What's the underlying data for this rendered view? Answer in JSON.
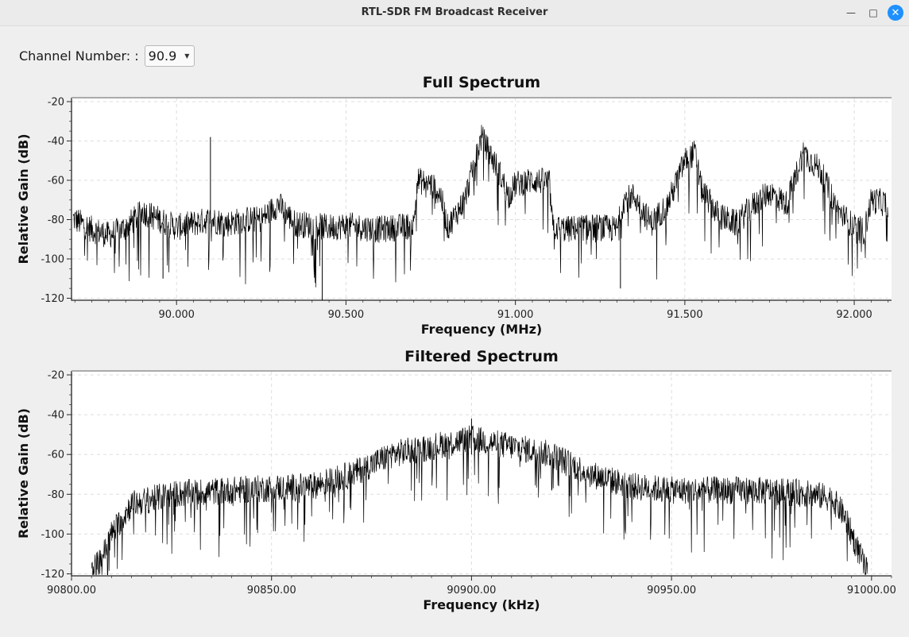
{
  "window": {
    "title": "RTL-SDR FM Broadcast Receiver",
    "minimize_icon": "minimize-icon",
    "maximize_icon": "maximize-icon",
    "close_icon": "close-icon"
  },
  "controls": {
    "channel_label": "Channel Number: :",
    "channel_value": "90.9",
    "dropdown_icon": "chevron-down-icon"
  },
  "chart_data": [
    {
      "type": "line",
      "title": "Full Spectrum",
      "xlabel": "Frequency (MHz)",
      "ylabel": "Relative Gain (dB)",
      "xlim": [
        89.69,
        92.11
      ],
      "ylim": [
        -121,
        -18
      ],
      "grid": true,
      "x_ticks": [
        "90.000",
        "90.500",
        "91.000",
        "91.500",
        "92.000"
      ],
      "y_ticks": [
        "-20",
        "-40",
        "-60",
        "-80",
        "-100",
        "-120"
      ],
      "series": [
        {
          "x": [
            89.69,
            89.75,
            89.8,
            89.85,
            89.9,
            89.95,
            90.0,
            90.05,
            90.1,
            90.15,
            90.2,
            90.25,
            90.3,
            90.35,
            90.4,
            90.45,
            90.5,
            90.55,
            90.6,
            90.65,
            90.7,
            90.71,
            90.75,
            90.78,
            90.8,
            90.85,
            90.9,
            90.95,
            90.98,
            91.0,
            91.05,
            91.1,
            91.11,
            91.15,
            91.2,
            91.25,
            91.3,
            91.32,
            91.35,
            91.4,
            91.45,
            91.5,
            91.53,
            91.55,
            91.6,
            91.65,
            91.7,
            91.75,
            91.8,
            91.85,
            91.9,
            91.95,
            92.0,
            92.03,
            92.05,
            92.1
          ],
          "y": [
            -79,
            -85,
            -88,
            -84,
            -76,
            -80,
            -84,
            -82,
            -80,
            -82,
            -80,
            -80,
            -72,
            -82,
            -83,
            -84,
            -83,
            -84,
            -85,
            -84,
            -83,
            -60,
            -62,
            -68,
            -84,
            -70,
            -38,
            -55,
            -68,
            -62,
            -60,
            -61,
            -84,
            -85,
            -84,
            -84,
            -85,
            -70,
            -68,
            -82,
            -72,
            -50,
            -46,
            -65,
            -78,
            -82,
            -73,
            -66,
            -72,
            -46,
            -55,
            -75,
            -84,
            -86,
            -70,
            -72
          ]
        }
      ]
    },
    {
      "type": "line",
      "title": "Filtered Spectrum",
      "xlabel": "Frequency (kHz)",
      "ylabel": "Relative Gain (dB)",
      "xlim": [
        90800,
        91005
      ],
      "ylim": [
        -121,
        -18
      ],
      "grid": true,
      "x_ticks": [
        "90800.00",
        "90850.00",
        "90900.00",
        "90950.00",
        "91000.00"
      ],
      "y_ticks": [
        "-20",
        "-40",
        "-60",
        "-80",
        "-100",
        "-120"
      ],
      "series": [
        {
          "x": [
            90805,
            90808,
            90810,
            90815,
            90825,
            90840,
            90860,
            90870,
            90880,
            90890,
            90900,
            90910,
            90920,
            90930,
            90940,
            90950,
            90960,
            90970,
            90980,
            90985,
            90990,
            90993,
            90996,
            90999
          ],
          "y": [
            -120,
            -110,
            -100,
            -85,
            -80,
            -78,
            -76,
            -70,
            -60,
            -56,
            -52,
            -56,
            -60,
            -70,
            -76,
            -78,
            -78,
            -78,
            -79,
            -80,
            -82,
            -90,
            -105,
            -120
          ]
        }
      ]
    }
  ]
}
